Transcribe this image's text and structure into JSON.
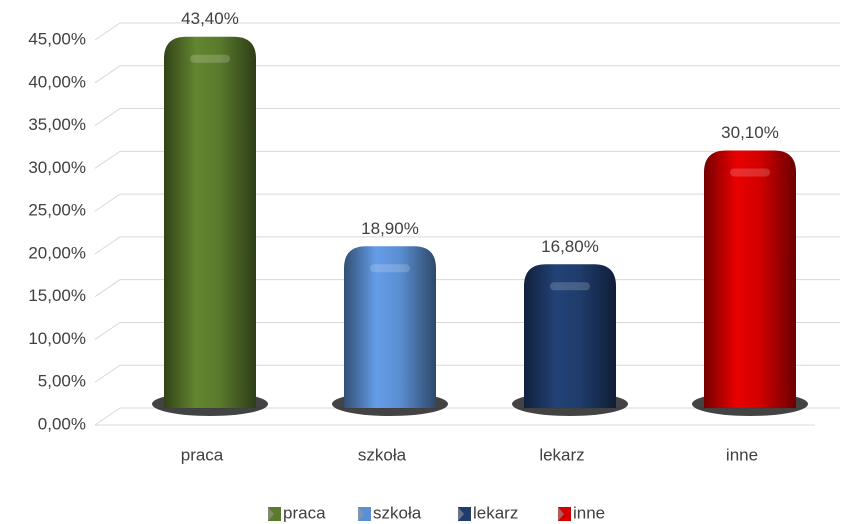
{
  "chart_data": {
    "type": "bar",
    "categories": [
      "praca",
      "szkoła",
      "lekarz",
      "inne"
    ],
    "values": [
      43.4,
      18.9,
      16.8,
      30.1
    ],
    "value_labels": [
      "43,40%",
      "18,90%",
      "16,80%",
      "30,10%"
    ],
    "colors": [
      "#5a7a2c",
      "#5b8fd3",
      "#1f3c6c",
      "#d40000"
    ],
    "ylim": [
      0,
      45
    ],
    "yticks": [
      {
        "value": 0,
        "label": "0,00%"
      },
      {
        "value": 5,
        "label": "5,00%"
      },
      {
        "value": 10,
        "label": "10,00%"
      },
      {
        "value": 15,
        "label": "15,00%"
      },
      {
        "value": 20,
        "label": "20,00%"
      },
      {
        "value": 25,
        "label": "25,00%"
      },
      {
        "value": 30,
        "label": "30,00%"
      },
      {
        "value": 35,
        "label": "35,00%"
      },
      {
        "value": 40,
        "label": "40,00%"
      },
      {
        "value": 45,
        "label": "45,00%"
      }
    ],
    "grid": true,
    "legend": "bottom"
  }
}
